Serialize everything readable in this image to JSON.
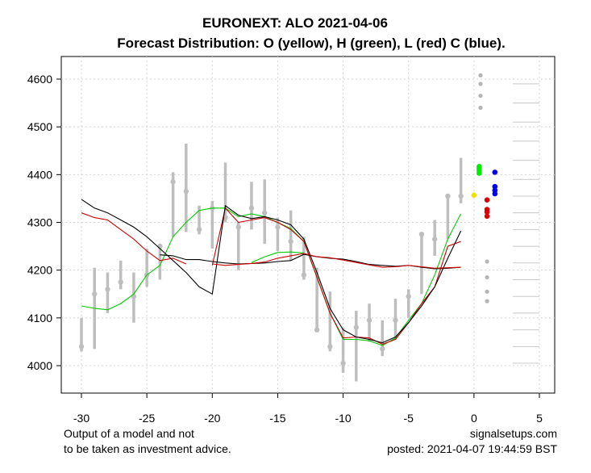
{
  "chart_data": {
    "type": "line",
    "title": "EURONEXT: ALO 2021-04-06",
    "subtitle": "Forecast Distribution: O (yellow), H (green), L (red) C (blue).",
    "xlim": [
      -32,
      6
    ],
    "ylim": [
      3967,
      4630
    ],
    "x_ticks": [
      -30,
      -25,
      -20,
      -15,
      -10,
      -5,
      0,
      5
    ],
    "y_ticks": [
      4000,
      4100,
      4200,
      4300,
      4400,
      4500,
      4600
    ],
    "grid": true,
    "colors": {
      "bars": "#bebebe",
      "open_forecast": "#f0e000",
      "high_forecast": "#00ee00",
      "low_forecast": "#dd0000",
      "close_forecast": "#0000ee",
      "high_line": "#00cc00",
      "low_line": "#cc0000",
      "close_line": "#000000"
    },
    "candles": [
      {
        "x": -30,
        "low": 4030,
        "high": 4100,
        "close": 4040
      },
      {
        "x": -29,
        "low": 4035,
        "high": 4205,
        "close": 4150
      },
      {
        "x": -28,
        "low": 4110,
        "high": 4195,
        "close": 4160
      },
      {
        "x": -27,
        "low": 4160,
        "high": 4220,
        "close": 4175
      },
      {
        "x": -26,
        "low": 4090,
        "high": 4195,
        "close": 4145
      },
      {
        "x": -25,
        "low": 4165,
        "high": 4245,
        "close": 4190
      },
      {
        "x": -24,
        "low": 4180,
        "high": 4255,
        "close": 4250
      },
      {
        "x": -23,
        "low": 4270,
        "high": 4405,
        "close": 4385
      },
      {
        "x": -22,
        "low": 4280,
        "high": 4465,
        "close": 4365
      },
      {
        "x": -21,
        "low": 4275,
        "high": 4335,
        "close": 4285
      },
      {
        "x": -20,
        "low": 4245,
        "high": 4345,
        "close": 4330
      },
      {
        "x": -19,
        "low": 4300,
        "high": 4425,
        "close": 4310
      },
      {
        "x": -18,
        "low": 4200,
        "high": 4300,
        "close": 4290
      },
      {
        "x": -17,
        "low": 4285,
        "high": 4385,
        "close": 4330
      },
      {
        "x": -16,
        "low": 4255,
        "high": 4390,
        "close": 4320
      },
      {
        "x": -15,
        "low": 4240,
        "high": 4310,
        "close": 4290
      },
      {
        "x": -14,
        "low": 4220,
        "high": 4325,
        "close": 4260
      },
      {
        "x": -13,
        "low": 4180,
        "high": 4270,
        "close": 4190
      },
      {
        "x": -12,
        "low": 4070,
        "high": 4205,
        "close": 4075
      },
      {
        "x": -11,
        "low": 4030,
        "high": 4155,
        "close": 4040
      },
      {
        "x": -10,
        "low": 3985,
        "high": 4080,
        "close": 4005
      },
      {
        "x": -9,
        "low": 3967,
        "high": 4115,
        "close": 4080
      },
      {
        "x": -8,
        "low": 4050,
        "high": 4130,
        "close": 4095
      },
      {
        "x": -7,
        "low": 4020,
        "high": 4095,
        "close": 4035
      },
      {
        "x": -6,
        "low": 4055,
        "high": 4140,
        "close": 4095
      },
      {
        "x": -5,
        "low": 4100,
        "high": 4160,
        "close": 4145
      },
      {
        "x": -4,
        "low": 4150,
        "high": 4280,
        "close": 4275
      },
      {
        "x": -3,
        "low": 4230,
        "high": 4305,
        "close": 4265
      },
      {
        "x": -2,
        "low": 4265,
        "high": 4360,
        "close": 4355
      },
      {
        "x": -1,
        "low": 4340,
        "high": 4435,
        "close": 4355
      }
    ],
    "series": [
      {
        "name": "high-moving-average",
        "color": "#00cc00",
        "x": [
          -30,
          -29,
          -28,
          -27,
          -26,
          -25,
          -24,
          -23,
          -22,
          -21,
          -20,
          -19,
          -18,
          -17,
          -16,
          -15,
          -14,
          -13,
          -12,
          -11,
          -10,
          -9,
          -8,
          -7,
          -6,
          -5,
          -4,
          -3,
          -2,
          -1
        ],
        "values": [
          4125,
          4120,
          4117,
          4130,
          4150,
          4190,
          4210,
          4270,
          4300,
          4325,
          4330,
          4330,
          4312,
          4318,
          4312,
          4300,
          4287,
          4260,
          4185,
          4110,
          4055,
          4055,
          4052,
          4042,
          4058,
          4095,
          4130,
          4190,
          4265,
          4318
        ]
      },
      {
        "name": "low-moving-average",
        "color": "#cc0000",
        "x": [
          -30,
          -29,
          -28,
          -27,
          -26,
          -25,
          -24,
          -23,
          -22
        ],
        "values": [
          4320,
          4310,
          4305,
          4285,
          4265,
          4240,
          4220,
          4225,
          4213
        ]
      },
      {
        "name": "low-moving-average-2",
        "color": "#cc0000",
        "x": [
          -20,
          -19,
          -18,
          -17,
          -16,
          -15,
          -14,
          -13,
          -12,
          -11,
          -10,
          -9,
          -8,
          -7,
          -6,
          -5,
          -4,
          -3,
          -2,
          -1
        ],
        "values": [
          4210,
          4330,
          4300,
          4305,
          4310,
          4300,
          4285,
          4260,
          4185,
          4110,
          4058,
          4060,
          4058,
          4045,
          4055,
          4090,
          4130,
          4165,
          4250,
          4260
        ]
      },
      {
        "name": "close-moving-average",
        "color": "#000000",
        "x": [
          -30,
          -29,
          -28,
          -27,
          -26,
          -25,
          -24,
          -23,
          -22,
          -21,
          -20,
          -19,
          -18,
          -17,
          -16,
          -15,
          -14,
          -13,
          -12,
          -11,
          -10,
          -9,
          -8,
          -7,
          -6,
          -5,
          -4,
          -3,
          -2,
          -1
        ],
        "values": [
          4348,
          4330,
          4320,
          4305,
          4290,
          4270,
          4245,
          4220,
          4195,
          4165,
          4150,
          4335,
          4315,
          4308,
          4312,
          4305,
          4295,
          4265,
          4195,
          4120,
          4075,
          4060,
          4055,
          4048,
          4060,
          4090,
          4125,
          4165,
          4225,
          4282
        ]
      },
      {
        "name": "close-long-average",
        "color": "#000000",
        "x": [
          -24,
          -23,
          -22,
          -21,
          -20,
          -19,
          -18,
          -17,
          -16,
          -15,
          -14,
          -13,
          -12,
          -11,
          -10,
          -9,
          -8,
          -7,
          -6,
          -5,
          -4,
          -3,
          -2,
          -1
        ],
        "values": [
          4232,
          4230,
          4222,
          4222,
          4218,
          4215,
          4213,
          4214,
          4215,
          4218,
          4220,
          4233,
          4228,
          4225,
          4223,
          4218,
          4212,
          4210,
          4208,
          4210,
          4206,
          4203,
          4204,
          4206
        ]
      },
      {
        "name": "high-long-average",
        "color": "#00cc00",
        "x": [
          -17,
          -16,
          -15,
          -14,
          -13
        ],
        "values": [
          4216,
          4228,
          4237,
          4238,
          4236
        ]
      },
      {
        "name": "low-long-average",
        "color": "#cc0000",
        "x": [
          -20,
          -19,
          -18,
          -17,
          -16,
          -15,
          -14,
          -13,
          -12,
          -11,
          -10,
          -9,
          -8,
          -7,
          -6,
          -5,
          -4,
          -3,
          -2,
          -1
        ],
        "values": [
          4213,
          4210,
          4212,
          4214,
          4217,
          4225,
          4230,
          4235,
          4228,
          4226,
          4221,
          4216,
          4211,
          4206,
          4207,
          4210,
          4207,
          4204,
          4205,
          4206
        ]
      }
    ],
    "forecast_points": {
      "open": [
        {
          "x": 0,
          "y": 4357
        }
      ],
      "high": [
        {
          "x": 0.4,
          "y": 4403
        },
        {
          "x": 0.4,
          "y": 4408
        },
        {
          "x": 0.4,
          "y": 4413
        },
        {
          "x": 0.4,
          "y": 4417
        }
      ],
      "low": [
        {
          "x": 1.0,
          "y": 4313
        },
        {
          "x": 1.0,
          "y": 4322
        },
        {
          "x": 1.0,
          "y": 4327
        },
        {
          "x": 1.0,
          "y": 4347
        }
      ],
      "close": [
        {
          "x": 1.6,
          "y": 4360
        },
        {
          "x": 1.6,
          "y": 4367
        },
        {
          "x": 1.6,
          "y": 4375
        },
        {
          "x": 1.6,
          "y": 4405
        }
      ],
      "gray": [
        {
          "x": 0.5,
          "y": 4608
        },
        {
          "x": 0.5,
          "y": 4590
        },
        {
          "x": 0.5,
          "y": 4565
        },
        {
          "x": 0.5,
          "y": 4540
        },
        {
          "x": 1.0,
          "y": 4218
        },
        {
          "x": 1.0,
          "y": 4185
        },
        {
          "x": 1.0,
          "y": 4155
        },
        {
          "x": 1.0,
          "y": 4135
        }
      ]
    },
    "right_ticks": [
      4590,
      4550,
      4510,
      4470,
      4430,
      4390,
      4355,
      4320,
      4285,
      4250,
      4215,
      4180,
      4145,
      4110,
      4075,
      4040,
      4005
    ]
  },
  "footer": {
    "left_line1": "Output of a model and not",
    "left_line2": "to be taken as investment advice.",
    "right_line1": "signalsetups.com",
    "right_line2": "posted: 2021-04-07 19:44:59 BST"
  }
}
